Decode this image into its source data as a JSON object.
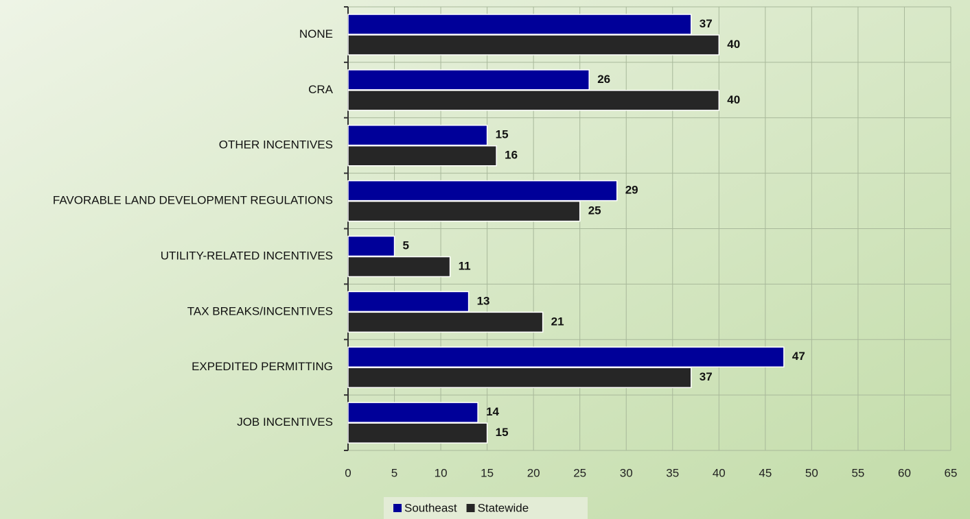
{
  "chart_data": {
    "type": "bar",
    "orientation": "horizontal",
    "categories": [
      "NONE",
      "CRA",
      "OTHER INCENTIVES",
      "FAVORABLE LAND DEVELOPMENT REGULATIONS",
      "UTILITY-RELATED INCENTIVES",
      "TAX BREAKS/INCENTIVES",
      "EXPEDITED PERMITTING",
      "JOB INCENTIVES"
    ],
    "series": [
      {
        "name": "Southeast",
        "color": "#000099",
        "values": [
          37,
          26,
          15,
          29,
          5,
          13,
          47,
          14
        ]
      },
      {
        "name": "Statewide",
        "color": "#262626",
        "values": [
          40,
          40,
          16,
          25,
          11,
          21,
          37,
          15
        ]
      }
    ],
    "xlim": [
      0,
      65
    ],
    "xticks": [
      0,
      5,
      10,
      15,
      20,
      25,
      30,
      35,
      40,
      45,
      50,
      55,
      60,
      65
    ],
    "grid": true,
    "legend": "bottom"
  }
}
